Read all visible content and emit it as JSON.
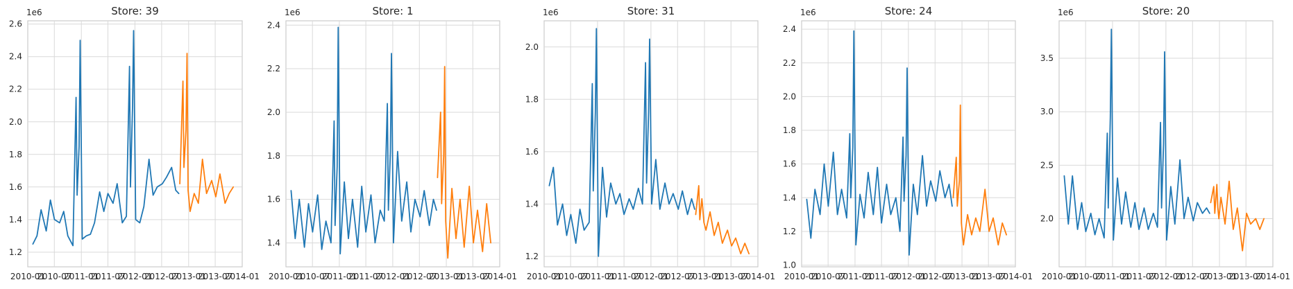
{
  "colors": {
    "history": "#1f77b4",
    "forecast": "#ff7f0e"
  },
  "chart_data": [
    {
      "type": "line",
      "title": "Store: 39",
      "offset_label": "1e6",
      "xlim": [
        "2010-01-01",
        "2014-01-01"
      ],
      "ylim": [
        1.11,
        2.62
      ],
      "yticks": [
        1.2,
        1.4,
        1.6,
        1.8,
        2.0,
        2.2,
        2.4,
        2.6
      ],
      "xticks": [
        "2010-01",
        "2010-07",
        "2011-01",
        "2011-07",
        "2012-01",
        "2012-07",
        "2013-01",
        "2013-07",
        "2014-01"
      ],
      "grid": true,
      "series": [
        {
          "role": "history",
          "x": [
            "2010-02-05",
            "2010-03-05",
            "2010-04-02",
            "2010-05-07",
            "2010-06-04",
            "2010-07-02",
            "2010-08-06",
            "2010-09-03",
            "2010-10-01",
            "2010-11-05",
            "2010-11-26",
            "2010-12-03",
            "2010-12-17",
            "2010-12-24",
            "2011-01-07",
            "2011-02-04",
            "2011-03-04",
            "2011-04-01",
            "2011-05-06",
            "2011-06-03",
            "2011-07-01",
            "2011-08-05",
            "2011-09-02",
            "2011-10-07",
            "2011-11-04",
            "2011-11-25",
            "2011-12-02",
            "2011-12-16",
            "2011-12-23",
            "2012-01-06",
            "2012-02-03",
            "2012-03-02",
            "2012-04-06",
            "2012-05-04",
            "2012-06-01",
            "2012-07-06",
            "2012-08-03",
            "2012-09-07",
            "2012-10-05",
            "2012-10-26"
          ],
          "values": [
            1.25,
            1.3,
            1.46,
            1.33,
            1.52,
            1.4,
            1.38,
            1.45,
            1.3,
            1.24,
            2.15,
            1.55,
            1.85,
            2.5,
            1.28,
            1.3,
            1.31,
            1.38,
            1.57,
            1.45,
            1.56,
            1.5,
            1.62,
            1.38,
            1.42,
            2.34,
            1.6,
            2.1,
            2.56,
            1.4,
            1.38,
            1.48,
            1.77,
            1.55,
            1.6,
            1.62,
            1.66,
            1.72,
            1.58,
            1.56
          ]
        },
        {
          "role": "forecast",
          "x": [
            "2012-11-02",
            "2012-11-23",
            "2012-11-30",
            "2012-12-14",
            "2012-12-21",
            "2012-12-28",
            "2013-01-11",
            "2013-02-08",
            "2013-03-08",
            "2013-04-05",
            "2013-05-03",
            "2013-06-07",
            "2013-07-05",
            "2013-08-02",
            "2013-09-06",
            "2013-10-04",
            "2013-11-01"
          ],
          "values": [
            1.62,
            2.25,
            1.72,
            1.95,
            2.42,
            1.58,
            1.45,
            1.56,
            1.5,
            1.77,
            1.56,
            1.64,
            1.54,
            1.68,
            1.5,
            1.56,
            1.6
          ]
        }
      ]
    },
    {
      "type": "line",
      "title": "Store: 1",
      "offset_label": "1e6",
      "xlim": [
        "2010-01-01",
        "2014-01-01"
      ],
      "ylim": [
        1.29,
        2.42
      ],
      "yticks": [
        1.4,
        1.6,
        1.8,
        2.0,
        2.2,
        2.4
      ],
      "xticks": [
        "2010-01",
        "2010-07",
        "2011-01",
        "2011-07",
        "2012-01",
        "2012-07",
        "2013-01",
        "2013-07",
        "2014-01"
      ],
      "grid": true,
      "series": [
        {
          "role": "history",
          "x": [
            "2010-02-05",
            "2010-03-05",
            "2010-04-02",
            "2010-05-07",
            "2010-06-04",
            "2010-07-02",
            "2010-08-06",
            "2010-09-03",
            "2010-10-01",
            "2010-11-05",
            "2010-11-26",
            "2010-12-03",
            "2010-12-17",
            "2010-12-24",
            "2011-01-07",
            "2011-02-04",
            "2011-03-04",
            "2011-04-01",
            "2011-05-06",
            "2011-06-03",
            "2011-07-01",
            "2011-08-05",
            "2011-09-02",
            "2011-10-07",
            "2011-11-04",
            "2011-11-25",
            "2011-12-02",
            "2011-12-16",
            "2011-12-23",
            "2012-01-06",
            "2012-02-03",
            "2012-03-02",
            "2012-04-06",
            "2012-05-04",
            "2012-06-01",
            "2012-07-06",
            "2012-08-03",
            "2012-09-07",
            "2012-10-05",
            "2012-10-26"
          ],
          "values": [
            1.64,
            1.42,
            1.6,
            1.38,
            1.58,
            1.45,
            1.62,
            1.37,
            1.5,
            1.4,
            1.96,
            1.48,
            1.75,
            2.39,
            1.35,
            1.68,
            1.42,
            1.6,
            1.38,
            1.66,
            1.45,
            1.62,
            1.4,
            1.55,
            1.5,
            2.04,
            1.55,
            1.82,
            2.27,
            1.4,
            1.82,
            1.5,
            1.68,
            1.45,
            1.6,
            1.52,
            1.64,
            1.48,
            1.6,
            1.55
          ]
        },
        {
          "role": "forecast",
          "x": [
            "2012-11-02",
            "2012-11-23",
            "2012-11-30",
            "2012-12-14",
            "2012-12-21",
            "2012-12-28",
            "2013-01-11",
            "2013-02-08",
            "2013-03-08",
            "2013-04-05",
            "2013-05-03",
            "2013-06-07",
            "2013-07-05",
            "2013-08-02",
            "2013-09-06",
            "2013-10-04",
            "2013-11-01"
          ],
          "values": [
            1.7,
            2.0,
            1.58,
            1.8,
            2.21,
            1.5,
            1.33,
            1.65,
            1.42,
            1.6,
            1.38,
            1.66,
            1.4,
            1.55,
            1.36,
            1.58,
            1.4
          ]
        }
      ]
    },
    {
      "type": "line",
      "title": "Store: 31",
      "offset_label": "1e6",
      "xlim": [
        "2010-01-01",
        "2014-01-01"
      ],
      "ylim": [
        1.16,
        2.1
      ],
      "yticks": [
        1.2,
        1.4,
        1.6,
        1.8,
        2.0
      ],
      "xticks": [
        "2010-01",
        "2010-07",
        "2011-01",
        "2011-07",
        "2012-01",
        "2012-07",
        "2013-01",
        "2013-07",
        "2014-01"
      ],
      "grid": true,
      "series": [
        {
          "role": "history",
          "x": [
            "2010-02-05",
            "2010-03-05",
            "2010-04-02",
            "2010-05-07",
            "2010-06-04",
            "2010-07-02",
            "2010-08-06",
            "2010-09-03",
            "2010-10-01",
            "2010-11-05",
            "2010-11-26",
            "2010-12-03",
            "2010-12-17",
            "2010-12-24",
            "2011-01-07",
            "2011-02-04",
            "2011-03-04",
            "2011-04-01",
            "2011-05-06",
            "2011-06-03",
            "2011-07-01",
            "2011-08-05",
            "2011-09-02",
            "2011-10-07",
            "2011-11-04",
            "2011-11-25",
            "2011-12-02",
            "2011-12-16",
            "2011-12-23",
            "2012-01-06",
            "2012-02-03",
            "2012-03-02",
            "2012-04-06",
            "2012-05-04",
            "2012-06-01",
            "2012-07-06",
            "2012-08-03",
            "2012-09-07",
            "2012-10-05",
            "2012-10-26"
          ],
          "values": [
            1.47,
            1.54,
            1.32,
            1.4,
            1.28,
            1.36,
            1.25,
            1.38,
            1.3,
            1.33,
            1.86,
            1.45,
            1.75,
            2.07,
            1.2,
            1.54,
            1.35,
            1.48,
            1.4,
            1.44,
            1.36,
            1.42,
            1.38,
            1.46,
            1.4,
            1.94,
            1.48,
            1.75,
            2.03,
            1.4,
            1.57,
            1.38,
            1.48,
            1.4,
            1.44,
            1.38,
            1.45,
            1.36,
            1.42,
            1.38
          ]
        },
        {
          "role": "forecast",
          "x": [
            "2012-11-02",
            "2012-11-23",
            "2012-11-30",
            "2012-12-14",
            "2012-12-21",
            "2012-12-28",
            "2013-01-11",
            "2013-02-08",
            "2013-03-08",
            "2013-04-05",
            "2013-05-03",
            "2013-06-07",
            "2013-07-05",
            "2013-08-02",
            "2013-09-06",
            "2013-10-04",
            "2013-11-01"
          ],
          "values": [
            1.36,
            1.47,
            1.34,
            1.42,
            1.38,
            1.33,
            1.3,
            1.37,
            1.28,
            1.33,
            1.25,
            1.3,
            1.24,
            1.27,
            1.21,
            1.25,
            1.21
          ]
        }
      ]
    },
    {
      "type": "line",
      "title": "Store: 24",
      "offset_label": "1e6",
      "xlim": [
        "2010-01-01",
        "2014-01-01"
      ],
      "ylim": [
        0.99,
        2.45
      ],
      "yticks": [
        1.0,
        1.2,
        1.4,
        1.6,
        1.8,
        2.0,
        2.2,
        2.4
      ],
      "xticks": [
        "2010-01",
        "2010-07",
        "2011-01",
        "2011-07",
        "2012-01",
        "2012-07",
        "2013-01",
        "2013-07",
        "2014-01"
      ],
      "grid": true,
      "series": [
        {
          "role": "history",
          "x": [
            "2010-02-05",
            "2010-03-05",
            "2010-04-02",
            "2010-05-07",
            "2010-06-04",
            "2010-07-02",
            "2010-08-06",
            "2010-09-03",
            "2010-10-01",
            "2010-11-05",
            "2010-11-26",
            "2010-12-03",
            "2010-12-17",
            "2010-12-24",
            "2011-01-07",
            "2011-02-04",
            "2011-03-04",
            "2011-04-01",
            "2011-05-06",
            "2011-06-03",
            "2011-07-01",
            "2011-08-05",
            "2011-09-02",
            "2011-10-07",
            "2011-11-04",
            "2011-11-25",
            "2011-12-02",
            "2011-12-16",
            "2011-12-23",
            "2012-01-06",
            "2012-02-03",
            "2012-03-02",
            "2012-04-06",
            "2012-05-04",
            "2012-06-01",
            "2012-07-06",
            "2012-08-03",
            "2012-09-07",
            "2012-10-05",
            "2012-10-26"
          ],
          "values": [
            1.39,
            1.16,
            1.45,
            1.3,
            1.6,
            1.35,
            1.67,
            1.3,
            1.45,
            1.28,
            1.78,
            1.4,
            1.7,
            2.39,
            1.12,
            1.42,
            1.28,
            1.55,
            1.3,
            1.58,
            1.25,
            1.48,
            1.3,
            1.4,
            1.2,
            1.76,
            1.38,
            1.65,
            2.17,
            1.06,
            1.48,
            1.3,
            1.65,
            1.35,
            1.5,
            1.38,
            1.56,
            1.4,
            1.48,
            1.35
          ]
        },
        {
          "role": "forecast",
          "x": [
            "2012-11-02",
            "2012-11-23",
            "2012-11-30",
            "2012-12-14",
            "2012-12-21",
            "2012-12-28",
            "2013-01-11",
            "2013-02-08",
            "2013-03-08",
            "2013-04-05",
            "2013-05-03",
            "2013-06-07",
            "2013-07-05",
            "2013-08-02",
            "2013-09-06",
            "2013-10-04",
            "2013-11-01"
          ],
          "values": [
            1.4,
            1.64,
            1.35,
            1.5,
            1.95,
            1.25,
            1.12,
            1.3,
            1.18,
            1.28,
            1.2,
            1.45,
            1.2,
            1.28,
            1.12,
            1.25,
            1.18
          ]
        }
      ]
    },
    {
      "type": "line",
      "title": "Store: 20",
      "offset_label": "1e6",
      "xlim": [
        "2010-01-01",
        "2014-01-01"
      ],
      "ylim": [
        1.55,
        3.85
      ],
      "yticks": [
        2.0,
        2.5,
        3.0,
        3.5
      ],
      "xticks": [
        "2010-01",
        "2010-07",
        "2011-01",
        "2011-07",
        "2012-01",
        "2012-07",
        "2013-01",
        "2013-07",
        "2014-01"
      ],
      "grid": true,
      "series": [
        {
          "role": "history",
          "x": [
            "2010-02-05",
            "2010-03-05",
            "2010-04-02",
            "2010-05-07",
            "2010-06-04",
            "2010-07-02",
            "2010-08-06",
            "2010-09-03",
            "2010-10-01",
            "2010-11-05",
            "2010-11-26",
            "2010-12-03",
            "2010-12-17",
            "2010-12-24",
            "2011-01-07",
            "2011-02-04",
            "2011-03-04",
            "2011-04-01",
            "2011-05-06",
            "2011-06-03",
            "2011-07-01",
            "2011-08-05",
            "2011-09-02",
            "2011-10-07",
            "2011-11-04",
            "2011-11-25",
            "2011-12-02",
            "2011-12-16",
            "2011-12-23",
            "2012-01-06",
            "2012-02-03",
            "2012-03-02",
            "2012-04-06",
            "2012-05-04",
            "2012-06-01",
            "2012-07-06",
            "2012-08-03",
            "2012-09-07",
            "2012-10-05",
            "2012-10-26"
          ],
          "values": [
            2.4,
            1.95,
            2.4,
            1.9,
            2.15,
            1.88,
            2.05,
            1.85,
            2.0,
            1.82,
            2.8,
            2.1,
            2.95,
            3.77,
            1.8,
            2.38,
            1.95,
            2.25,
            1.92,
            2.15,
            1.9,
            2.1,
            1.9,
            2.05,
            1.92,
            2.9,
            2.1,
            2.7,
            3.56,
            1.8,
            2.3,
            1.95,
            2.55,
            2.0,
            2.2,
            1.98,
            2.15,
            2.05,
            2.1,
            2.05
          ]
        },
        {
          "role": "forecast",
          "x": [
            "2012-11-02",
            "2012-11-23",
            "2012-11-30",
            "2012-12-14",
            "2012-12-21",
            "2012-12-28",
            "2013-01-11",
            "2013-02-08",
            "2013-03-08",
            "2013-04-05",
            "2013-05-03",
            "2013-06-07",
            "2013-07-05",
            "2013-08-02",
            "2013-09-06",
            "2013-10-04",
            "2013-11-01"
          ],
          "values": [
            2.15,
            2.3,
            2.05,
            2.32,
            2.1,
            2.0,
            2.2,
            1.95,
            2.35,
            1.9,
            2.1,
            1.7,
            2.05,
            1.95,
            2.0,
            1.9,
            2.0
          ]
        }
      ]
    }
  ]
}
